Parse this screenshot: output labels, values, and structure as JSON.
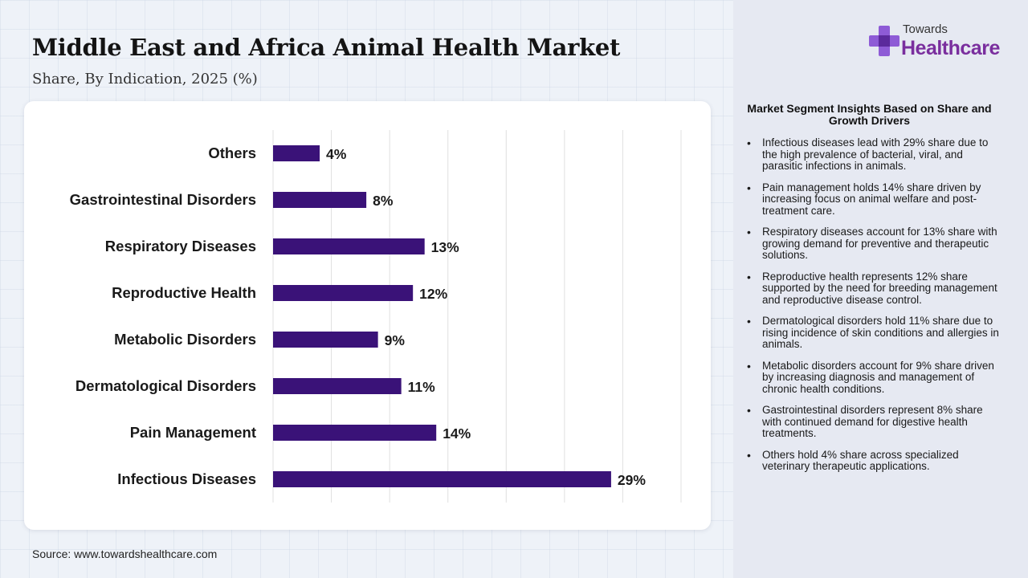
{
  "header": {
    "title": "Middle East and Africa Animal Health Market",
    "subtitle": "Share, By Indication, 2025 (%)"
  },
  "logo": {
    "top_text": "Towards",
    "main_text": "Healthcare",
    "icon": "medical-cross-icon",
    "colors": {
      "cross_light": "#8e5bd6",
      "cross_dark": "#5b2a9c",
      "text": "#7a2e9e"
    }
  },
  "source": "Source: www.towardshealthcare.com",
  "chart_data": {
    "type": "bar",
    "orientation": "horizontal",
    "categories": [
      "Others",
      "Gastrointestinal Disorders",
      "Respiratory Diseases",
      "Reproductive Health",
      "Metabolic Disorders",
      "Dermatological Disorders",
      "Pain Management",
      "Infectious Diseases"
    ],
    "values": [
      4,
      8,
      13,
      12,
      9,
      11,
      14,
      29
    ],
    "value_labels": [
      "4%",
      "8%",
      "13%",
      "12%",
      "9%",
      "11%",
      "14%",
      "29%"
    ],
    "bar_color": "#3a1278",
    "xlim": [
      0,
      35
    ],
    "grid": true
  },
  "insights": {
    "title": "Market Segment Insights Based on Share and Growth Drivers",
    "items": [
      "Infectious diseases lead with 29% share due to the high prevalence of bacterial, viral, and parasitic infections in animals.",
      "Pain management holds 14% share driven by increasing focus on animal welfare and post-treatment care.",
      "Respiratory diseases account for 13% share with growing demand for preventive and therapeutic solutions.",
      "Reproductive health represents 12% share supported by the need for breeding management and reproductive disease control.",
      "Dermatological disorders hold 11% share due to rising incidence of skin conditions and allergies in animals.",
      "Metabolic disorders account for 9% share driven by increasing diagnosis and management of chronic health conditions.",
      "Gastrointestinal disorders represent 8% share with continued demand for digestive health treatments.",
      "Others hold 4% share across specialized veterinary therapeutic applications."
    ]
  }
}
